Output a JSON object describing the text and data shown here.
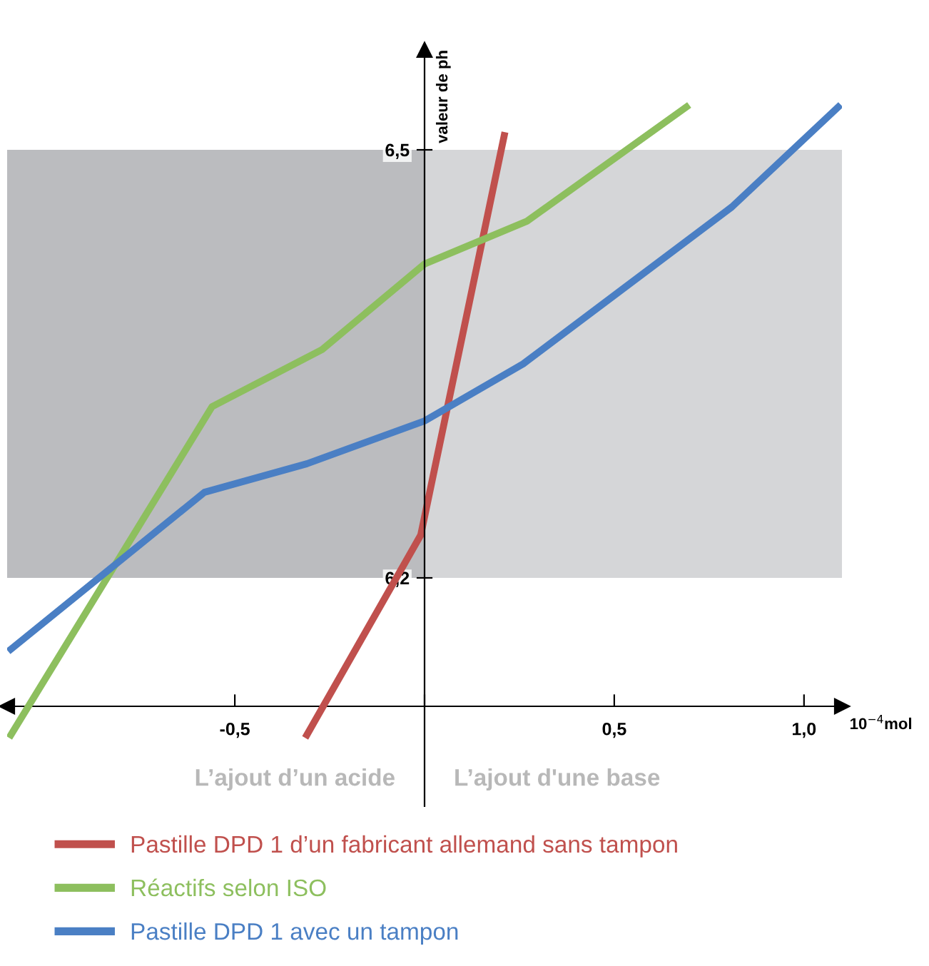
{
  "chart_data": {
    "type": "line",
    "ylabel": "valeur de ph",
    "xlabel": "10$^{−4}$mol",
    "xlim": [
      -1.1,
      1.1
    ],
    "ylim": [
      6.04,
      6.57
    ],
    "xticks": [
      {
        "value": -0.5,
        "label": "-0,5"
      },
      {
        "value": 0,
        "label": null
      },
      {
        "value": 0.5,
        "label": "0,5"
      },
      {
        "value": 1.0,
        "label": "1,0"
      }
    ],
    "yticks": [
      {
        "value": 6.2,
        "label": "6,2"
      },
      {
        "value": 6.5,
        "label": "6,5"
      }
    ],
    "bands": [
      {
        "axis": "x",
        "from": -1.1,
        "to": 0,
        "color": "#bbbcbf"
      },
      {
        "axis": "x",
        "from": 0,
        "to": 1.1,
        "color": "#d5d6d8"
      }
    ],
    "annotations": [
      "L’ajout d’un acide",
      "L’ajout d'une base"
    ],
    "legend": "bottom",
    "grid": false,
    "marker": "none",
    "line_style": "solid",
    "series": [
      {
        "name": "Pastille DPD 1 d’un fabricant allemand sans tampon",
        "color": "#c0504d",
        "x": [
          -0.31,
          -0.01,
          0.21
        ],
        "values": [
          6.09,
          6.23,
          6.51
        ]
      },
      {
        "name": "Réactifs selon ISO",
        "color": "#8dbf5e",
        "x": [
          -1.09,
          -0.56,
          -0.27,
          0,
          0.27,
          0.69
        ],
        "values": [
          6.09,
          6.32,
          6.36,
          6.42,
          6.45,
          6.53
        ]
      },
      {
        "name": "Pastille DPD 1 avec un tampon",
        "color": "#4a7fc4",
        "x": [
          -1.09,
          -0.58,
          -0.31,
          0,
          0.26,
          0.51,
          0.81,
          1.09
        ],
        "values": [
          6.15,
          6.26,
          6.28,
          6.31,
          6.35,
          6.4,
          6.46,
          6.53
        ]
      }
    ]
  }
}
